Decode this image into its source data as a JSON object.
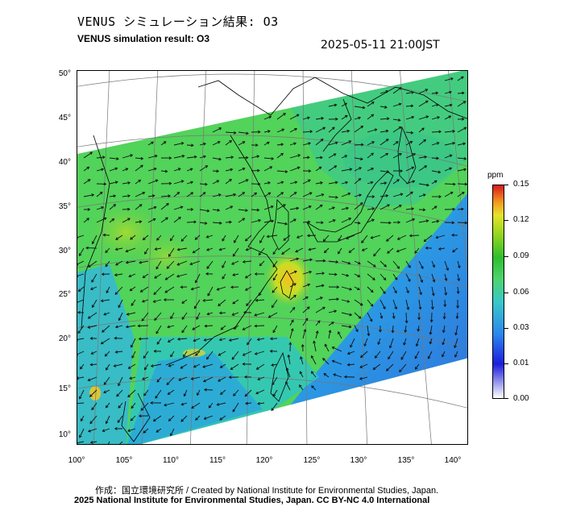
{
  "title_jp": "VENUS シミュレーション結果: O3",
  "title_en": "VENUS simulation result: O3",
  "datetime": "2025-05-11 21:00JST",
  "map": {
    "lat_ticks": [
      "50°",
      "45°",
      "40°",
      "35°",
      "30°",
      "25°",
      "20°",
      "15°",
      "10°"
    ],
    "lon_ticks": [
      "100°",
      "105°",
      "110°",
      "115°",
      "120°",
      "125°",
      "130°",
      "135°",
      "140°"
    ],
    "lon_range": [
      100,
      141
    ],
    "lat_range": [
      9,
      50
    ]
  },
  "colorbar": {
    "unit": "ppm",
    "ticks": [
      "0.15",
      "0.12",
      "0.09",
      "0.06",
      "0.03",
      "0.01",
      "0.00"
    ],
    "colors": [
      "#ffffff",
      "#1c1cdc",
      "#2a86ee",
      "#38c7ca",
      "#4dd46e",
      "#2dbf2d",
      "#9ed81e",
      "#e7e22a",
      "#f39a1f",
      "#d8181c"
    ]
  },
  "credit": "作成：国立環境研究所 / Created by National Institute for Environmental Studies, Japan.",
  "copyright": "2025 National Institute for Environmental Studies, Japan. CC BY-NC 4.0 International"
}
